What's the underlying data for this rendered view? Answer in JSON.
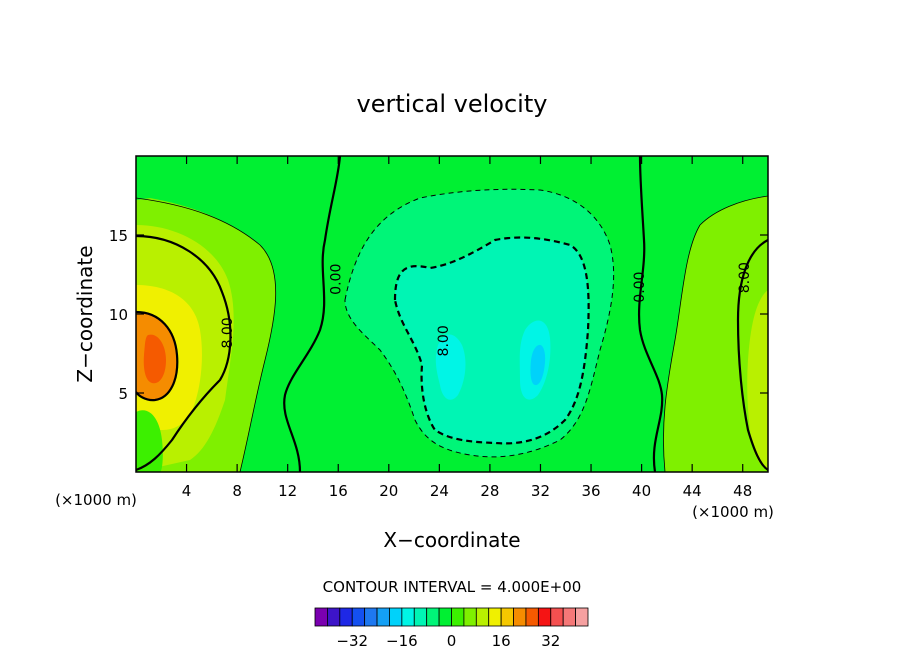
{
  "chart_data": {
    "type": "heatmap",
    "title": "vertical velocity",
    "xlabel": "X−coordinate",
    "ylabel": "Z−coordinate",
    "x_unit_left": "(×1000 m)",
    "x_unit_right": "(×1000 m)",
    "xlim": [
      0,
      50
    ],
    "ylim": [
      0,
      20
    ],
    "x_ticks": [
      4,
      8,
      12,
      16,
      20,
      24,
      28,
      32,
      36,
      40,
      44,
      48
    ],
    "y_ticks": [
      5,
      10,
      15
    ],
    "contour_interval_text": "CONTOUR INTERVAL =  4.000E+00",
    "contour_labels": [
      {
        "text": "0.00",
        "x": 15.8,
        "y": 12.2
      },
      {
        "text": "8.00",
        "x": 7.2,
        "y": 8.8
      },
      {
        "text": "8.00",
        "x": 24.3,
        "y": 8.3
      },
      {
        "text": "0.00",
        "x": 39.8,
        "y": 11.7
      },
      {
        "text": "8.00",
        "x": 48.1,
        "y": 12.3
      }
    ],
    "colorbar": {
      "tick_labels": [
        "−32",
        "−16",
        "0",
        "16",
        "32"
      ],
      "tick_values": [
        -32,
        -16,
        0,
        16,
        32
      ],
      "colors": [
        "#7a00b0",
        "#3d14c8",
        "#1e28e6",
        "#1450f0",
        "#1e78f0",
        "#14a0f5",
        "#00d2fa",
        "#00f5e6",
        "#00f5b4",
        "#00f578",
        "#00f032",
        "#3cf000",
        "#7ff000",
        "#b9f000",
        "#f0f000",
        "#f5c800",
        "#f58c00",
        "#f55a00",
        "#f51414",
        "#f55050",
        "#f57878",
        "#f5a0a0"
      ]
    }
  }
}
